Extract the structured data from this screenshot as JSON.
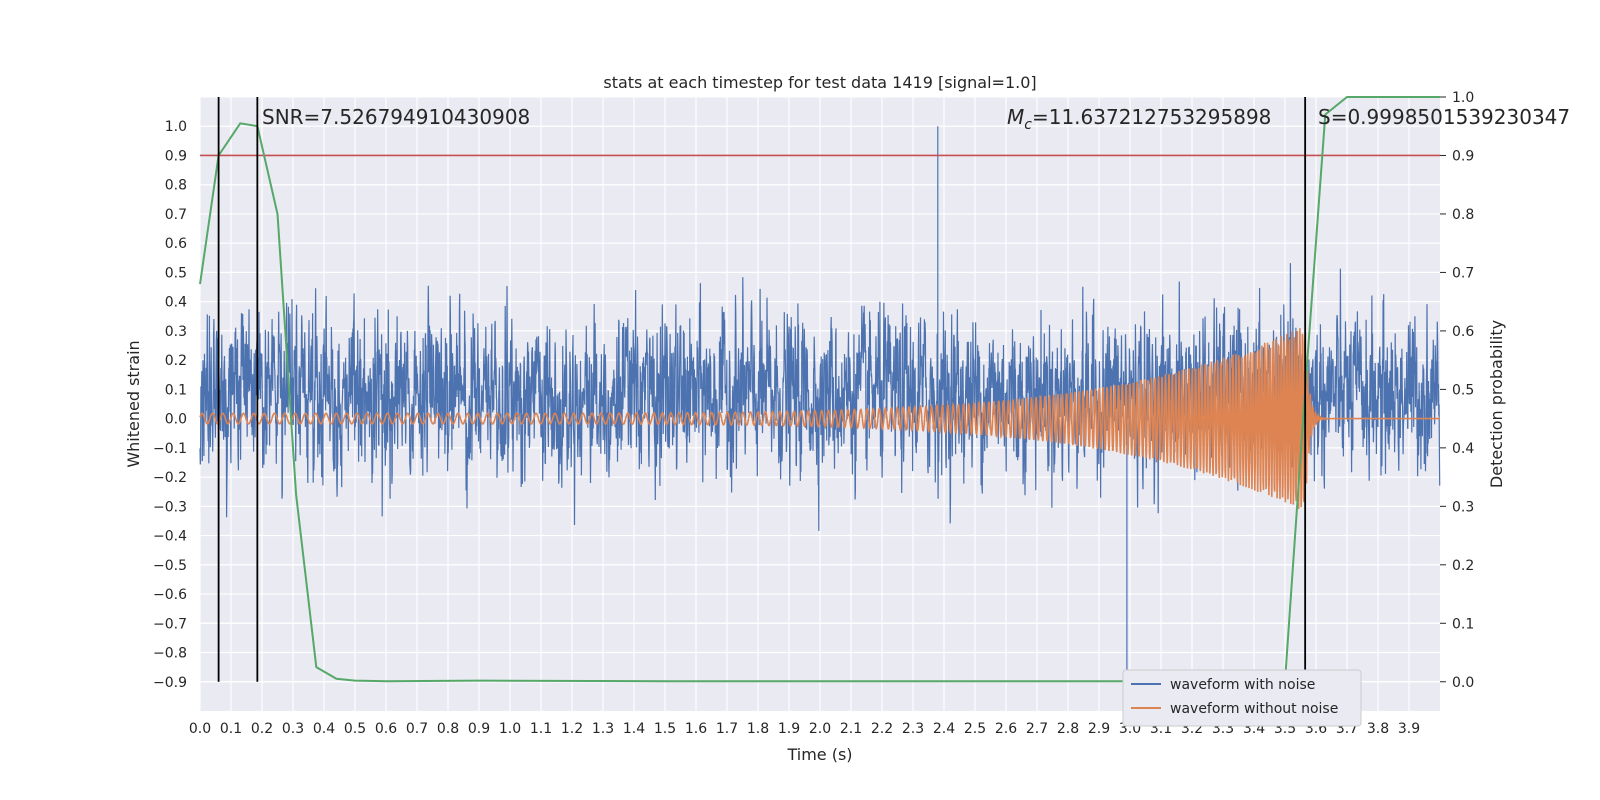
{
  "chart_data": {
    "type": "line",
    "title": "stats at each timestep for test data 1419 [signal=1.0]",
    "xlabel": "Time (s)",
    "ylabel_left": "Whitened strain",
    "ylabel_right": "Detection probability",
    "xlim": [
      0.0,
      4.0
    ],
    "ylim_left": [
      -1.0,
      1.1
    ],
    "ylim_right": [
      -0.05,
      1.0
    ],
    "x_ticks": [
      "0.0",
      "0.1",
      "0.2",
      "0.3",
      "0.4",
      "0.5",
      "0.6",
      "0.7",
      "0.8",
      "0.9",
      "1.0",
      "1.1",
      "1.2",
      "1.3",
      "1.4",
      "1.5",
      "1.6",
      "1.7",
      "1.8",
      "1.9",
      "2.0",
      "2.1",
      "2.2",
      "2.3",
      "2.4",
      "2.5",
      "2.6",
      "2.7",
      "2.8",
      "2.9",
      "3.0",
      "3.1",
      "3.2",
      "3.3",
      "3.4",
      "3.5",
      "3.6",
      "3.7",
      "3.8",
      "3.9"
    ],
    "y_ticks_left": [
      "−0.9",
      "−0.8",
      "−0.7",
      "−0.6",
      "−0.5",
      "−0.4",
      "−0.3",
      "−0.2",
      "−0.1",
      "0.0",
      "0.1",
      "0.2",
      "0.3",
      "0.4",
      "0.5",
      "0.6",
      "0.7",
      "0.8",
      "0.9",
      "1.0"
    ],
    "y_ticks_right": [
      "0.0",
      "0.1",
      "0.2",
      "0.3",
      "0.4",
      "0.5",
      "0.6",
      "0.7",
      "0.8",
      "0.9",
      "1.0"
    ],
    "grid": true,
    "legend_position": "lower-right",
    "annotations": {
      "snr": "SNR=7.526794910430908",
      "mc": "=11.637212753295898",
      "mc_symbol": "M",
      "mc_sub": "c",
      "s": "S=0.9998501539230347"
    },
    "threshold_line": {
      "axis": "right",
      "y": 0.9,
      "color": "#c44e52"
    },
    "vertical_markers": [
      0.06,
      0.185,
      3.565
    ],
    "series": [
      {
        "name": "waveform with noise",
        "color": "#4c72b0",
        "axis": "left",
        "noise_amplitude": 0.2,
        "spikes": [
          [
            2.38,
            1.0
          ],
          [
            2.38,
            0.8
          ],
          [
            2.99,
            -0.95
          ]
        ]
      },
      {
        "name": "waveform without noise",
        "color": "#dd8452",
        "axis": "left",
        "chirp": {
          "t_merge": 3.565,
          "amp_start": 0.018,
          "amp_peak": 0.32,
          "freq_start": 30,
          "freq_end": 120
        }
      },
      {
        "color": "#55a868",
        "axis": "right",
        "x": [
          0.0,
          0.06,
          0.13,
          0.185,
          0.25,
          0.31,
          0.375,
          0.44,
          0.5,
          0.6,
          0.9,
          1.5,
          2.0,
          2.5,
          3.0,
          3.2,
          3.4,
          3.5,
          3.565,
          3.63,
          3.7,
          3.8,
          3.9,
          4.0
        ],
        "y": [
          0.68,
          0.9,
          0.955,
          0.95,
          0.8,
          0.32,
          0.025,
          0.005,
          0.002,
          0.001,
          0.002,
          0.001,
          0.001,
          0.001,
          0.001,
          0.001,
          0.001,
          0.001,
          0.5,
          0.97,
          1.0,
          1.0,
          1.0,
          1.0
        ]
      }
    ]
  }
}
